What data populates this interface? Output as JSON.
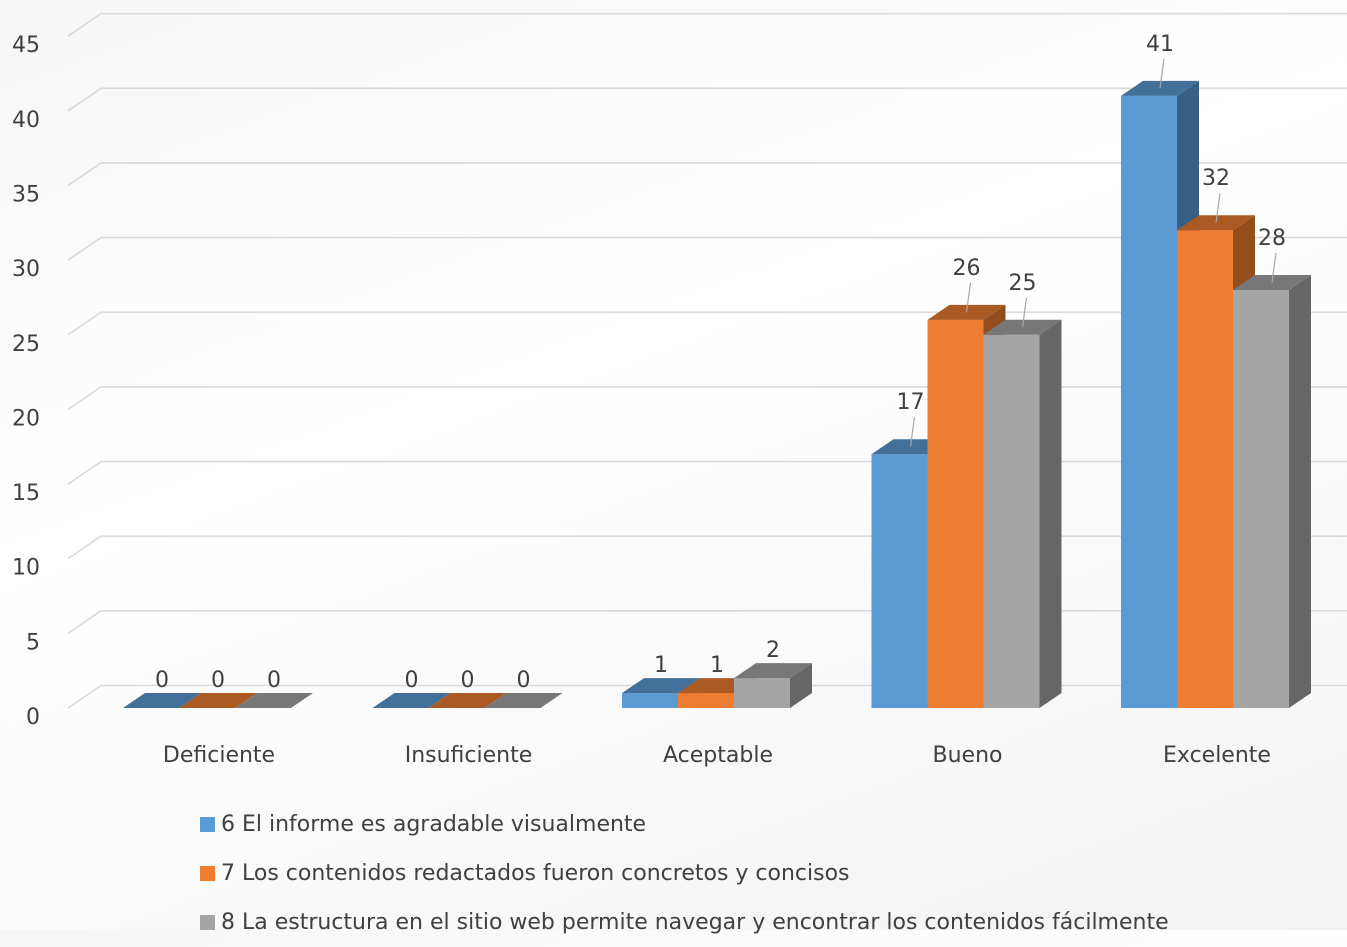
{
  "chart_data": {
    "type": "bar",
    "categories": [
      "Deficiente",
      "Insuficiente",
      "Aceptable",
      "Bueno",
      "Excelente"
    ],
    "series": [
      {
        "name": "6 El informe es agradable visualmente",
        "color": "#5B9BD5",
        "values": [
          0,
          0,
          1,
          17,
          41
        ]
      },
      {
        "name": "7 Los contenidos redactados fueron concretos y concisos",
        "color": "#ED7D31",
        "values": [
          0,
          0,
          1,
          26,
          32
        ]
      },
      {
        "name": "8 La estructura en el sitio web permite navegar y encontrar los contenidos fácilmente",
        "color": "#A5A5A5",
        "values": [
          0,
          0,
          2,
          25,
          28
        ]
      }
    ],
    "ylim": [
      0,
      45
    ],
    "yticks": [
      0,
      5,
      10,
      15,
      20,
      25,
      30,
      35,
      40,
      45
    ],
    "grid": true,
    "legend_position": "bottom",
    "data_labels": true
  }
}
